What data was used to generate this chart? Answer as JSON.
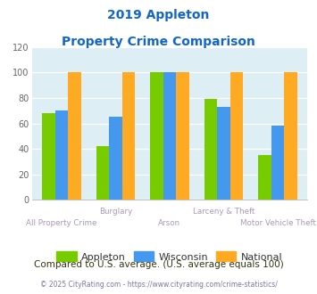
{
  "title_line1": "2019 Appleton",
  "title_line2": "Property Crime Comparison",
  "categories": [
    "All Property Crime",
    "Burglary",
    "Arson",
    "Larceny & Theft",
    "Motor Vehicle Theft"
  ],
  "appleton": [
    68,
    42,
    100,
    79,
    35
  ],
  "wisconsin": [
    70,
    65,
    100,
    73,
    58
  ],
  "national": [
    100,
    100,
    100,
    100,
    100
  ],
  "color_appleton": "#77cc00",
  "color_wisconsin": "#4499ee",
  "color_national": "#ffaa22",
  "color_title": "#1166cc",
  "color_xlabel_top": "#aa99bb",
  "color_xlabel_bottom": "#aa99bb",
  "color_note": "#333311",
  "color_copyright": "#7777aa",
  "color_bg_chart": "#ddeef4",
  "color_bg_fig": "#ffffff",
  "ylim": [
    0,
    120
  ],
  "yticks": [
    0,
    20,
    40,
    60,
    80,
    100,
    120
  ],
  "legend_labels": [
    "Appleton",
    "Wisconsin",
    "National"
  ],
  "note_text": "Compared to U.S. average. (U.S. average equals 100)",
  "copyright_text": "© 2025 CityRating.com - https://www.cityrating.com/crime-statistics/"
}
